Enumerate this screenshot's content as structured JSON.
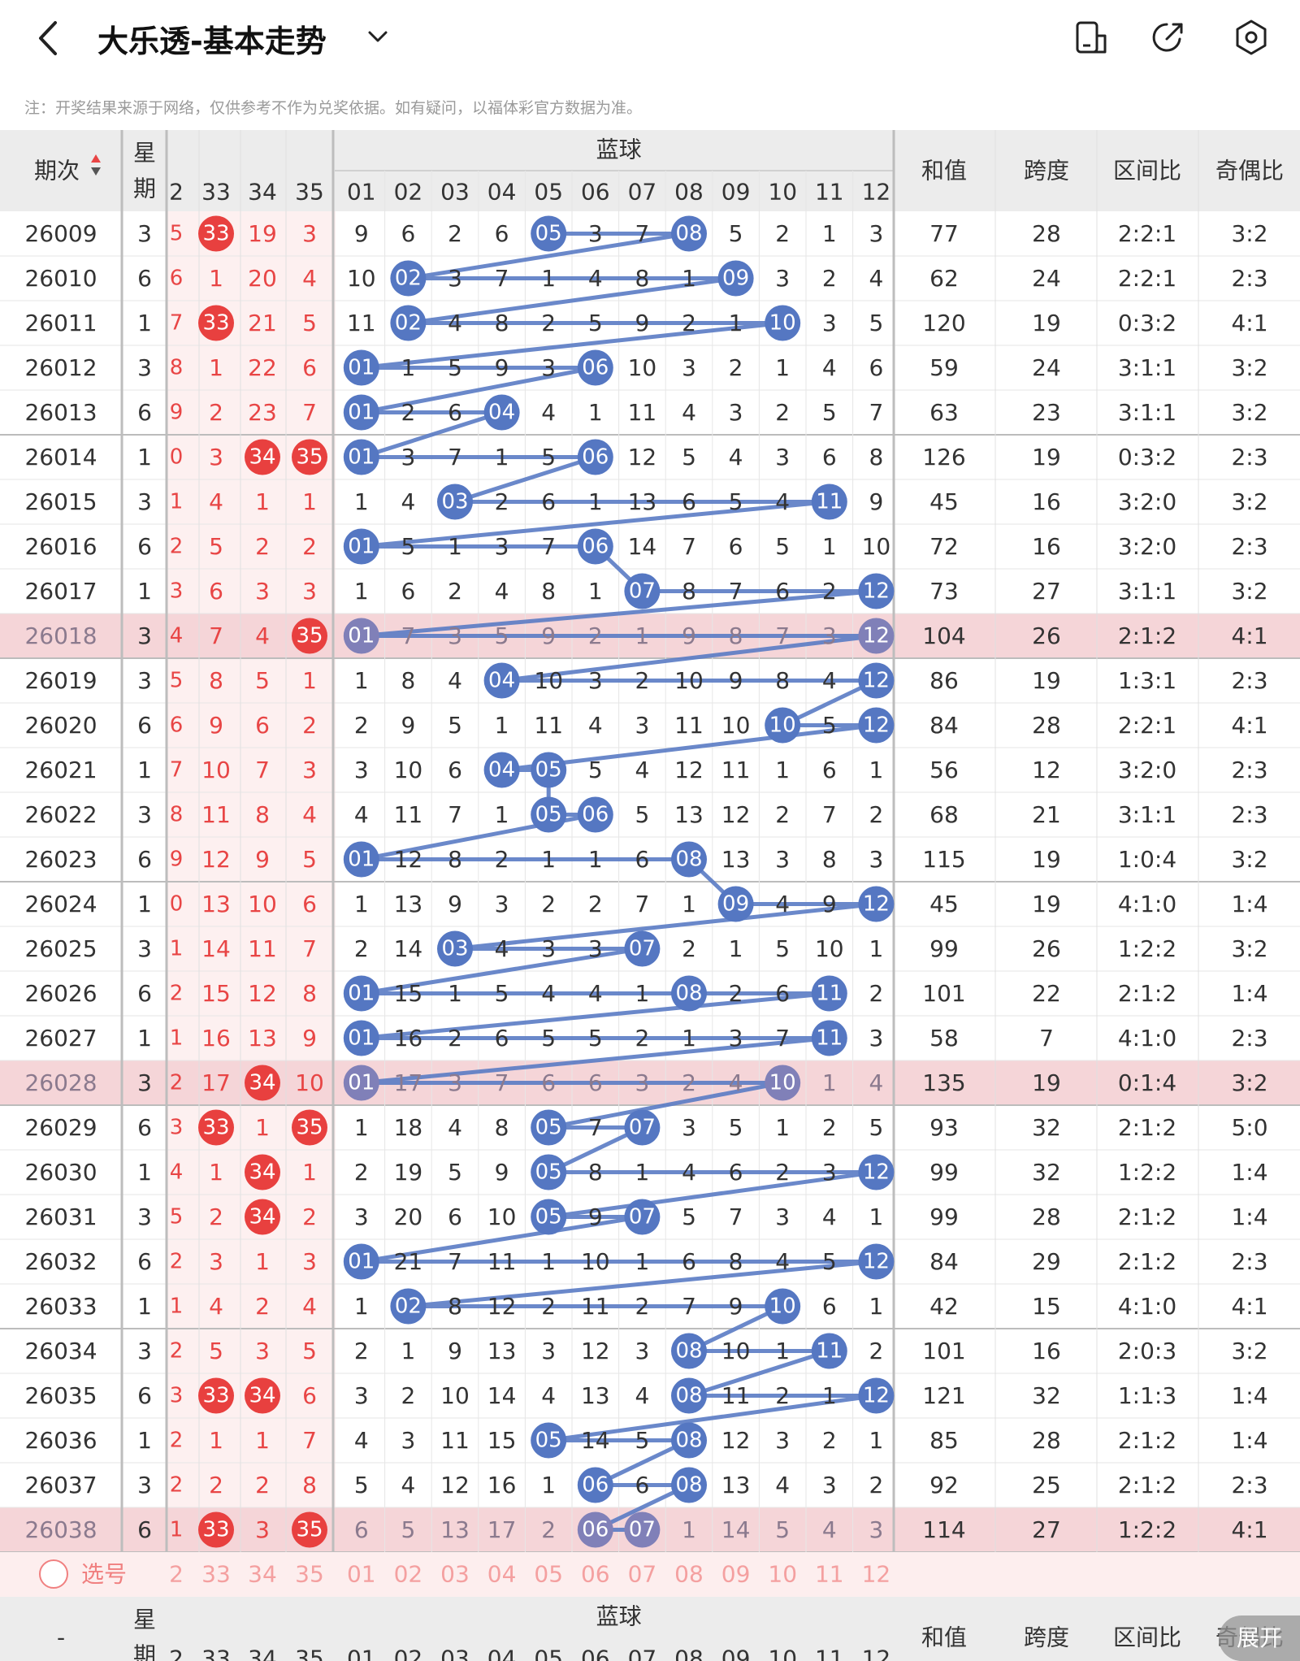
{
  "header": {
    "title": "大乐透-基本走势",
    "icons": [
      "back-arrow-icon",
      "chevron-down-icon",
      "phone-layout-icon",
      "share-icon",
      "settings-icon"
    ]
  },
  "notice": "注：开奖结果来源于网络，仅供参考不作为兑奖依据。如有疑问，以福体彩官方数据为准。",
  "columns": {
    "period": "期次",
    "week": "星期",
    "blue_group": "蓝球",
    "sum": "和值",
    "span": "跨度",
    "zone_ratio": "区间比",
    "odd_even": "奇偶比",
    "red_numbers": [
      "2",
      "33",
      "34",
      "35"
    ],
    "blue_numbers": [
      "01",
      "02",
      "03",
      "04",
      "05",
      "06",
      "07",
      "08",
      "09",
      "10",
      "11",
      "12"
    ]
  },
  "footer": {
    "select_label": "选号",
    "period_placeholder": "-",
    "expand_label": "展开"
  },
  "colors": {
    "red_ball": "#e8403f",
    "blue_ball": "#5577c2",
    "highlight_row": "#f5d5d8",
    "red_text": "#e84545",
    "header_bg": "#ececec"
  },
  "rows": [
    {
      "period": "26009",
      "week": "3",
      "edge": "5",
      "r33": "33",
      "r34": "19",
      "r35": "3",
      "b": [
        "9",
        "6",
        "2",
        "6",
        "05",
        "3",
        "7",
        "08",
        "5",
        "2",
        "1",
        "3"
      ],
      "sum": "77",
      "span": "28",
      "zone": "2:2:1",
      "oe": "3:2",
      "hl": false
    },
    {
      "period": "26010",
      "week": "6",
      "edge": "6",
      "r33": "1",
      "r34": "20",
      "r35": "4",
      "b": [
        "10",
        "02",
        "3",
        "7",
        "1",
        "4",
        "8",
        "1",
        "09",
        "3",
        "2",
        "4"
      ],
      "sum": "62",
      "span": "24",
      "zone": "2:2:1",
      "oe": "2:3",
      "hl": false
    },
    {
      "period": "26011",
      "week": "1",
      "edge": "7",
      "r33": "33",
      "r34": "21",
      "r35": "5",
      "b": [
        "11",
        "02",
        "4",
        "8",
        "2",
        "5",
        "9",
        "2",
        "1",
        "10",
        "3",
        "5"
      ],
      "sum": "120",
      "span": "19",
      "zone": "0:3:2",
      "oe": "4:1",
      "hl": false
    },
    {
      "period": "26012",
      "week": "3",
      "edge": "8",
      "r33": "1",
      "r34": "22",
      "r35": "6",
      "b": [
        "01",
        "1",
        "5",
        "9",
        "3",
        "06",
        "10",
        "3",
        "2",
        "1",
        "4",
        "6"
      ],
      "sum": "59",
      "span": "24",
      "zone": "3:1:1",
      "oe": "3:2",
      "hl": false
    },
    {
      "period": "26013",
      "week": "6",
      "edge": "9",
      "r33": "2",
      "r34": "23",
      "r35": "7",
      "b": [
        "01",
        "2",
        "6",
        "04",
        "4",
        "1",
        "11",
        "4",
        "3",
        "2",
        "5",
        "7"
      ],
      "sum": "63",
      "span": "23",
      "zone": "3:1:1",
      "oe": "3:2",
      "hl": false
    },
    {
      "period": "26014",
      "week": "1",
      "edge": "0",
      "r33": "3",
      "r34": "34",
      "r35": "35",
      "b": [
        "01",
        "3",
        "7",
        "1",
        "5",
        "06",
        "12",
        "5",
        "4",
        "3",
        "6",
        "8"
      ],
      "sum": "126",
      "span": "19",
      "zone": "0:3:2",
      "oe": "2:3",
      "hl": false
    },
    {
      "period": "26015",
      "week": "3",
      "edge": "1",
      "r33": "4",
      "r34": "1",
      "r35": "1",
      "b": [
        "1",
        "4",
        "03",
        "2",
        "6",
        "1",
        "13",
        "6",
        "5",
        "4",
        "11",
        "9"
      ],
      "sum": "45",
      "span": "16",
      "zone": "3:2:0",
      "oe": "3:2",
      "hl": false
    },
    {
      "period": "26016",
      "week": "6",
      "edge": "2",
      "r33": "5",
      "r34": "2",
      "r35": "2",
      "b": [
        "01",
        "5",
        "1",
        "3",
        "7",
        "06",
        "14",
        "7",
        "6",
        "5",
        "1",
        "10"
      ],
      "sum": "72",
      "span": "16",
      "zone": "3:2:0",
      "oe": "2:3",
      "hl": false
    },
    {
      "period": "26017",
      "week": "1",
      "edge": "3",
      "r33": "6",
      "r34": "3",
      "r35": "3",
      "b": [
        "1",
        "6",
        "2",
        "4",
        "8",
        "1",
        "07",
        "8",
        "7",
        "6",
        "2",
        "12"
      ],
      "sum": "73",
      "span": "27",
      "zone": "3:1:1",
      "oe": "3:2",
      "hl": false
    },
    {
      "period": "26018",
      "week": "3",
      "edge": "4",
      "r33": "7",
      "r34": "4",
      "r35": "35",
      "b": [
        "01",
        "7",
        "3",
        "5",
        "9",
        "2",
        "1",
        "9",
        "8",
        "7",
        "3",
        "12"
      ],
      "sum": "104",
      "span": "26",
      "zone": "2:1:2",
      "oe": "4:1",
      "hl": true
    },
    {
      "period": "26019",
      "week": "3",
      "edge": "5",
      "r33": "8",
      "r34": "5",
      "r35": "1",
      "b": [
        "1",
        "8",
        "4",
        "04",
        "10",
        "3",
        "2",
        "10",
        "9",
        "8",
        "4",
        "12"
      ],
      "sum": "86",
      "span": "19",
      "zone": "1:3:1",
      "oe": "2:3",
      "hl": false
    },
    {
      "period": "26020",
      "week": "6",
      "edge": "6",
      "r33": "9",
      "r34": "6",
      "r35": "2",
      "b": [
        "2",
        "9",
        "5",
        "1",
        "11",
        "4",
        "3",
        "11",
        "10",
        "10",
        "5",
        "12"
      ],
      "sum": "84",
      "span": "28",
      "zone": "2:2:1",
      "oe": "4:1",
      "hl": false
    },
    {
      "period": "26021",
      "week": "1",
      "edge": "7",
      "r33": "10",
      "r34": "7",
      "r35": "3",
      "b": [
        "3",
        "10",
        "6",
        "04",
        "05",
        "5",
        "4",
        "12",
        "11",
        "1",
        "6",
        "1"
      ],
      "sum": "56",
      "span": "12",
      "zone": "3:2:0",
      "oe": "2:3",
      "hl": false
    },
    {
      "period": "26022",
      "week": "3",
      "edge": "8",
      "r33": "11",
      "r34": "8",
      "r35": "4",
      "b": [
        "4",
        "11",
        "7",
        "1",
        "05",
        "06",
        "5",
        "13",
        "12",
        "2",
        "7",
        "2"
      ],
      "sum": "68",
      "span": "21",
      "zone": "3:1:1",
      "oe": "2:3",
      "hl": false
    },
    {
      "period": "26023",
      "week": "6",
      "edge": "9",
      "r33": "12",
      "r34": "9",
      "r35": "5",
      "b": [
        "01",
        "12",
        "8",
        "2",
        "1",
        "1",
        "6",
        "08",
        "13",
        "3",
        "8",
        "3"
      ],
      "sum": "115",
      "span": "19",
      "zone": "1:0:4",
      "oe": "3:2",
      "hl": false
    },
    {
      "period": "26024",
      "week": "1",
      "edge": "0",
      "r33": "13",
      "r34": "10",
      "r35": "6",
      "b": [
        "1",
        "13",
        "9",
        "3",
        "2",
        "2",
        "7",
        "1",
        "09",
        "4",
        "9",
        "12"
      ],
      "sum": "45",
      "span": "19",
      "zone": "4:1:0",
      "oe": "1:4",
      "hl": false
    },
    {
      "period": "26025",
      "week": "3",
      "edge": "1",
      "r33": "14",
      "r34": "11",
      "r35": "7",
      "b": [
        "2",
        "14",
        "03",
        "4",
        "3",
        "3",
        "07",
        "2",
        "1",
        "5",
        "10",
        "1"
      ],
      "sum": "99",
      "span": "26",
      "zone": "1:2:2",
      "oe": "3:2",
      "hl": false
    },
    {
      "period": "26026",
      "week": "6",
      "edge": "2",
      "r33": "15",
      "r34": "12",
      "r35": "8",
      "b": [
        "01",
        "15",
        "1",
        "5",
        "4",
        "4",
        "1",
        "08",
        "2",
        "6",
        "11",
        "2"
      ],
      "sum": "101",
      "span": "22",
      "zone": "2:1:2",
      "oe": "1:4",
      "hl": false
    },
    {
      "period": "26027",
      "week": "1",
      "edge": "1",
      "r33": "16",
      "r34": "13",
      "r35": "9",
      "b": [
        "01",
        "16",
        "2",
        "6",
        "5",
        "5",
        "2",
        "1",
        "3",
        "7",
        "11",
        "3"
      ],
      "sum": "58",
      "span": "7",
      "zone": "4:1:0",
      "oe": "2:3",
      "hl": false
    },
    {
      "period": "26028",
      "week": "3",
      "edge": "2",
      "r33": "17",
      "r34": "34",
      "r35": "10",
      "b": [
        "01",
        "17",
        "3",
        "7",
        "6",
        "6",
        "3",
        "2",
        "4",
        "10",
        "1",
        "4"
      ],
      "sum": "135",
      "span": "19",
      "zone": "0:1:4",
      "oe": "3:2",
      "hl": true
    },
    {
      "period": "26029",
      "week": "6",
      "edge": "3",
      "r33": "33",
      "r34": "1",
      "r35": "35",
      "b": [
        "1",
        "18",
        "4",
        "8",
        "05",
        "7",
        "07",
        "3",
        "5",
        "1",
        "2",
        "5"
      ],
      "sum": "93",
      "span": "32",
      "zone": "2:1:2",
      "oe": "5:0",
      "hl": false
    },
    {
      "period": "26030",
      "week": "1",
      "edge": "4",
      "r33": "1",
      "r34": "34",
      "r35": "1",
      "b": [
        "2",
        "19",
        "5",
        "9",
        "05",
        "8",
        "1",
        "4",
        "6",
        "2",
        "3",
        "12"
      ],
      "sum": "99",
      "span": "32",
      "zone": "1:2:2",
      "oe": "1:4",
      "hl": false
    },
    {
      "period": "26031",
      "week": "3",
      "edge": "5",
      "r33": "2",
      "r34": "34",
      "r35": "2",
      "b": [
        "3",
        "20",
        "6",
        "10",
        "05",
        "9",
        "07",
        "5",
        "7",
        "3",
        "4",
        "1"
      ],
      "sum": "99",
      "span": "28",
      "zone": "2:1:2",
      "oe": "1:4",
      "hl": false
    },
    {
      "period": "26032",
      "week": "6",
      "edge": "2",
      "r33": "3",
      "r34": "1",
      "r35": "3",
      "b": [
        "01",
        "21",
        "7",
        "11",
        "1",
        "10",
        "1",
        "6",
        "8",
        "4",
        "5",
        "12"
      ],
      "sum": "84",
      "span": "29",
      "zone": "2:1:2",
      "oe": "2:3",
      "hl": false
    },
    {
      "period": "26033",
      "week": "1",
      "edge": "1",
      "r33": "4",
      "r34": "2",
      "r35": "4",
      "b": [
        "1",
        "02",
        "8",
        "12",
        "2",
        "11",
        "2",
        "7",
        "9",
        "10",
        "6",
        "1"
      ],
      "sum": "42",
      "span": "15",
      "zone": "4:1:0",
      "oe": "4:1",
      "hl": false
    },
    {
      "period": "26034",
      "week": "3",
      "edge": "2",
      "r33": "5",
      "r34": "3",
      "r35": "5",
      "b": [
        "2",
        "1",
        "9",
        "13",
        "3",
        "12",
        "3",
        "08",
        "10",
        "1",
        "11",
        "2"
      ],
      "sum": "101",
      "span": "16",
      "zone": "2:0:3",
      "oe": "3:2",
      "hl": false
    },
    {
      "period": "26035",
      "week": "6",
      "edge": "3",
      "r33": "33",
      "r34": "34",
      "r35": "6",
      "b": [
        "3",
        "2",
        "10",
        "14",
        "4",
        "13",
        "4",
        "08",
        "11",
        "2",
        "1",
        "12"
      ],
      "sum": "121",
      "span": "32",
      "zone": "1:1:3",
      "oe": "1:4",
      "hl": false
    },
    {
      "period": "26036",
      "week": "1",
      "edge": "2",
      "r33": "1",
      "r34": "1",
      "r35": "7",
      "b": [
        "4",
        "3",
        "11",
        "15",
        "05",
        "14",
        "5",
        "08",
        "12",
        "3",
        "2",
        "1"
      ],
      "sum": "85",
      "span": "28",
      "zone": "2:1:2",
      "oe": "1:4",
      "hl": false
    },
    {
      "period": "26037",
      "week": "3",
      "edge": "2",
      "r33": "2",
      "r34": "2",
      "r35": "8",
      "b": [
        "5",
        "4",
        "12",
        "16",
        "1",
        "06",
        "6",
        "08",
        "13",
        "4",
        "3",
        "2"
      ],
      "sum": "92",
      "span": "25",
      "zone": "2:1:2",
      "oe": "2:3",
      "hl": false
    },
    {
      "period": "26038",
      "week": "6",
      "edge": "1",
      "r33": "33",
      "r34": "3",
      "r35": "35",
      "b": [
        "6",
        "5",
        "13",
        "17",
        "2",
        "06",
        "07",
        "1",
        "14",
        "5",
        "4",
        "3"
      ],
      "sum": "114",
      "span": "27",
      "zone": "1:2:2",
      "oe": "4:1",
      "hl": true
    }
  ]
}
